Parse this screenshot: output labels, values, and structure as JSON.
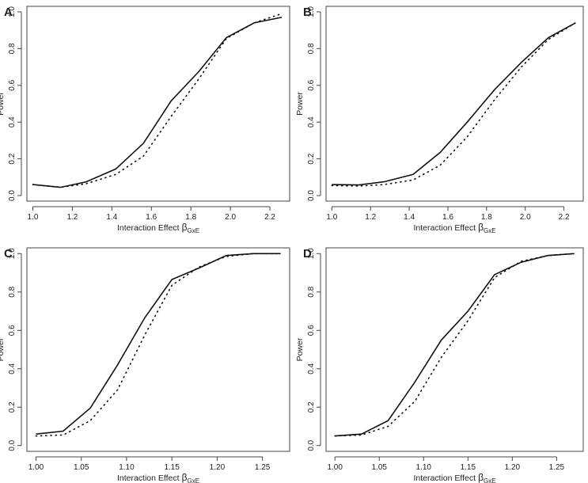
{
  "chart_data": [
    {
      "panel": "A",
      "type": "line",
      "xlabel": "Interaction Effect",
      "xlabel_symbol": "β",
      "xlabel_sub": "GxE",
      "ylabel": "Power",
      "xlim": [
        0.97,
        2.3
      ],
      "ylim": [
        -0.03,
        1.03
      ],
      "xticks": [
        1.0,
        1.2,
        1.4,
        1.6,
        1.8,
        2.0,
        2.2
      ],
      "xtick_labels": [
        "1.0",
        "1.2",
        "1.4",
        "1.6",
        "1.8",
        "2.0",
        "2.2"
      ],
      "yticks": [
        0.0,
        0.2,
        0.4,
        0.6,
        0.8,
        1.0
      ],
      "ytick_labels": [
        "0.0",
        "0.2",
        "0.4",
        "0.6",
        "0.8",
        "1.0"
      ],
      "x": [
        1.0,
        1.14,
        1.27,
        1.42,
        1.56,
        1.7,
        1.84,
        1.98,
        2.12,
        2.26
      ],
      "series": [
        {
          "name": "solid",
          "style": "solid",
          "values": [
            0.06,
            0.045,
            0.075,
            0.145,
            0.285,
            0.515,
            0.675,
            0.86,
            0.94,
            0.97
          ]
        },
        {
          "name": "dotted",
          "style": "dotted",
          "values": [
            0.06,
            0.045,
            0.065,
            0.115,
            0.215,
            0.43,
            0.635,
            0.855,
            0.94,
            0.99
          ]
        }
      ]
    },
    {
      "panel": "B",
      "type": "line",
      "xlabel": "Interaction Effect",
      "xlabel_symbol": "β",
      "xlabel_sub": "GxE",
      "ylabel": "Power",
      "xlim": [
        0.97,
        2.3
      ],
      "ylim": [
        -0.03,
        1.03
      ],
      "xticks": [
        1.0,
        1.2,
        1.4,
        1.6,
        1.8,
        2.0,
        2.2
      ],
      "xtick_labels": [
        "1.0",
        "1.2",
        "1.4",
        "1.6",
        "1.8",
        "2.0",
        "2.2"
      ],
      "yticks": [
        0.0,
        0.2,
        0.4,
        0.6,
        0.8,
        1.0
      ],
      "ytick_labels": [
        "0.0",
        "0.2",
        "0.4",
        "0.6",
        "0.8",
        "1.0"
      ],
      "x": [
        1.0,
        1.14,
        1.27,
        1.42,
        1.56,
        1.7,
        1.84,
        1.98,
        2.12,
        2.26
      ],
      "series": [
        {
          "name": "solid",
          "style": "solid",
          "values": [
            0.06,
            0.058,
            0.075,
            0.115,
            0.235,
            0.4,
            0.575,
            0.725,
            0.86,
            0.94
          ]
        },
        {
          "name": "dotted",
          "style": "dotted",
          "values": [
            0.055,
            0.052,
            0.06,
            0.085,
            0.165,
            0.32,
            0.52,
            0.7,
            0.85,
            0.94
          ]
        }
      ]
    },
    {
      "panel": "C",
      "type": "line",
      "xlabel": "Interaction Effect",
      "xlabel_symbol": "β",
      "xlabel_sub": "GxE",
      "ylabel": "Power",
      "xlim": [
        0.99,
        1.28
      ],
      "ylim": [
        -0.03,
        1.03
      ],
      "xticks": [
        1.0,
        1.05,
        1.1,
        1.15,
        1.2,
        1.25
      ],
      "xtick_labels": [
        "1.00",
        "1.05",
        "1.10",
        "1.15",
        "1.20",
        "1.25"
      ],
      "yticks": [
        0.0,
        0.2,
        0.4,
        0.6,
        0.8,
        1.0
      ],
      "ytick_labels": [
        "0.0",
        "0.2",
        "0.4",
        "0.6",
        "0.8",
        "1.0"
      ],
      "x": [
        1.0,
        1.03,
        1.06,
        1.09,
        1.12,
        1.15,
        1.18,
        1.21,
        1.24,
        1.27
      ],
      "series": [
        {
          "name": "solid",
          "style": "solid",
          "values": [
            0.06,
            0.075,
            0.195,
            0.42,
            0.665,
            0.865,
            0.925,
            0.99,
            1.0,
            1.0
          ]
        },
        {
          "name": "dotted",
          "style": "dotted",
          "values": [
            0.05,
            0.055,
            0.13,
            0.29,
            0.575,
            0.835,
            0.93,
            0.985,
            1.0,
            1.0
          ]
        }
      ]
    },
    {
      "panel": "D",
      "type": "line",
      "xlabel": "Interaction Effect",
      "xlabel_symbol": "β",
      "xlabel_sub": "GxE",
      "ylabel": "Power",
      "xlim": [
        0.99,
        1.28
      ],
      "ylim": [
        -0.03,
        1.03
      ],
      "xticks": [
        1.0,
        1.05,
        1.1,
        1.15,
        1.2,
        1.25
      ],
      "xtick_labels": [
        "1.00",
        "1.05",
        "1.10",
        "1.15",
        "1.20",
        "1.25"
      ],
      "yticks": [
        0.0,
        0.2,
        0.4,
        0.6,
        0.8,
        1.0
      ],
      "ytick_labels": [
        "0.0",
        "0.2",
        "0.4",
        "0.6",
        "0.8",
        "1.0"
      ],
      "x": [
        1.0,
        1.03,
        1.06,
        1.09,
        1.12,
        1.15,
        1.18,
        1.21,
        1.24,
        1.27
      ],
      "series": [
        {
          "name": "solid",
          "style": "solid",
          "values": [
            0.05,
            0.06,
            0.13,
            0.33,
            0.55,
            0.7,
            0.89,
            0.955,
            0.99,
            1.0
          ]
        },
        {
          "name": "dotted",
          "style": "dotted",
          "values": [
            0.05,
            0.055,
            0.1,
            0.23,
            0.46,
            0.65,
            0.875,
            0.96,
            0.99,
            1.0
          ]
        }
      ]
    }
  ]
}
